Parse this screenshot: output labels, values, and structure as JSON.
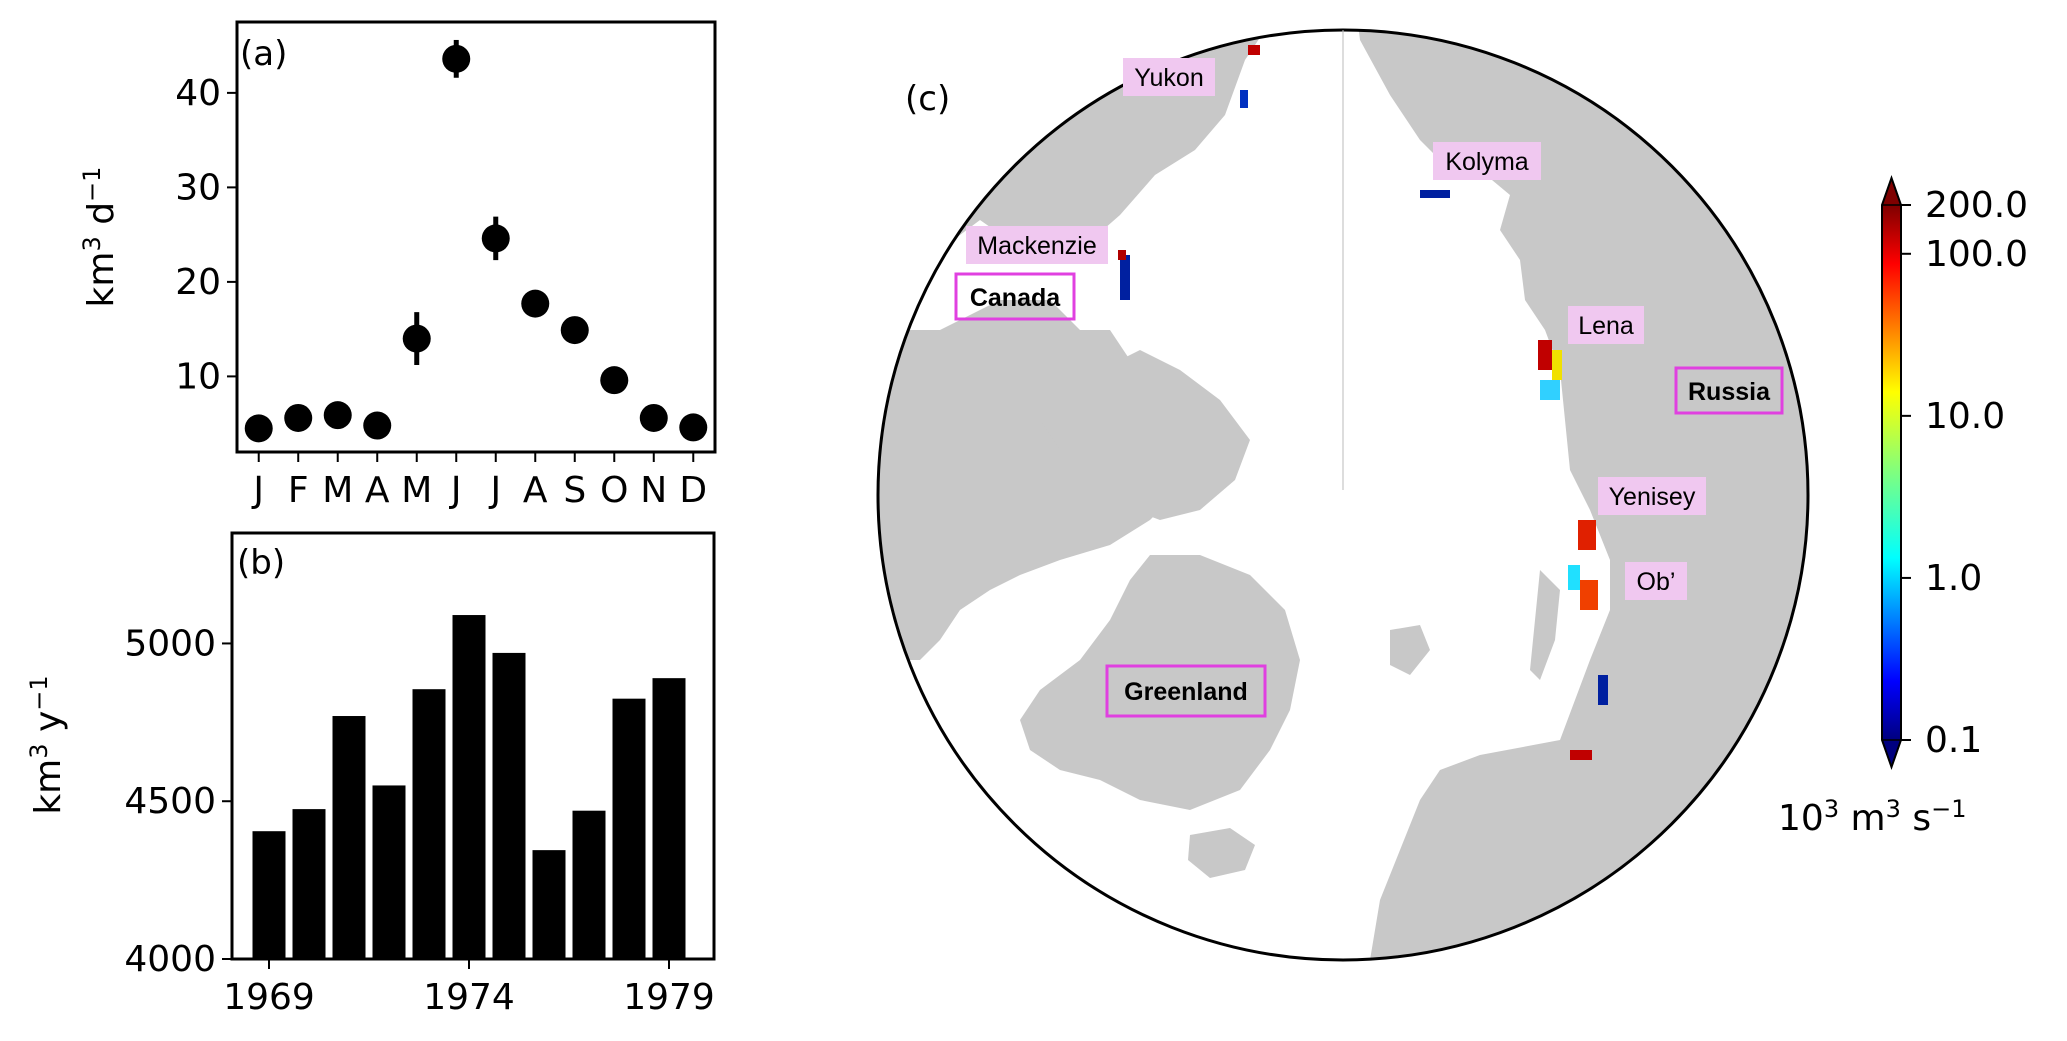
{
  "chart_data": [
    {
      "type": "scatter",
      "panel_label": "(a)",
      "categories": [
        "J",
        "F",
        "M",
        "A",
        "M",
        "J",
        "J",
        "A",
        "S",
        "O",
        "N",
        "D"
      ],
      "values": [
        4.5,
        5.6,
        5.9,
        4.8,
        14.0,
        43.6,
        24.6,
        17.7,
        14.9,
        9.6,
        5.6,
        4.6
      ],
      "error": [
        0.3,
        0.4,
        0.4,
        0.3,
        2.8,
        2.0,
        2.3,
        0.6,
        0.6,
        0.5,
        0.3,
        0.3
      ],
      "ylabel_base": "km",
      "ylabel_sup1": "3",
      "ylabel_mid": " d",
      "ylabel_sup2": "−1",
      "yticks": [
        "10",
        "20",
        "30",
        "40"
      ],
      "ylim": [
        2.0,
        47.5
      ],
      "grid": false
    },
    {
      "type": "bar",
      "panel_label": "(b)",
      "x": [
        1969,
        1970,
        1971,
        1972,
        1973,
        1974,
        1975,
        1976,
        1977,
        1978,
        1979
      ],
      "values": [
        4405,
        4475,
        4770,
        4550,
        4855,
        5090,
        4970,
        4345,
        4470,
        4825,
        4890
      ],
      "ylabel_base": "km",
      "ylabel_sup1": "3",
      "ylabel_mid": " y",
      "ylabel_sup2": "−1",
      "yticks": [
        "4000",
        "4500",
        "5000"
      ],
      "xticks": [
        "1969",
        "1974",
        "1979"
      ],
      "ylim": [
        4000,
        5350
      ],
      "grid": false
    }
  ],
  "map": {
    "panel_label": "(c)",
    "rivers": [
      "Yukon",
      "Kolyma",
      "Mackenzie",
      "Lena",
      "Yenisey",
      "Ob’"
    ],
    "regions": [
      "Canada",
      "Russia",
      "Greenland"
    ],
    "colors": {
      "land": "#c8c8c8",
      "ocean": "#ffffff",
      "river_label_bg": "#f0c8f0",
      "region_box": "#e040e0"
    }
  },
  "colorbar": {
    "scale": "log",
    "ticks": [
      "200.0",
      "100.0",
      "10.0",
      "1.0",
      "0.1"
    ],
    "range": [
      0.1,
      200.0
    ],
    "unit_base": "10",
    "unit_sup1": "3",
    "unit_mid": " m",
    "unit_sup2": "3",
    "unit_end": " s",
    "unit_sup3": "−1",
    "colormap": "jet"
  }
}
